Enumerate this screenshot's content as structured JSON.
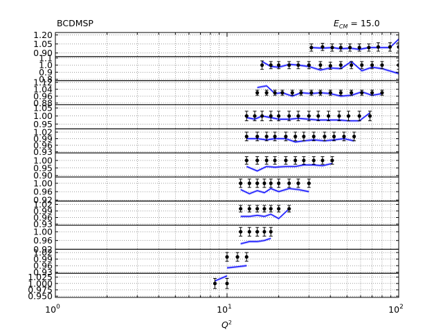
{
  "figure": {
    "left_title": "BCDMSP",
    "right_title_prefix": "E",
    "right_title_sub": "CM",
    "right_title_value": " = 15.0",
    "xlabel_main": "Q",
    "xlabel_sup": "2",
    "colors": {
      "model": "#0000ff",
      "band": "#8080ff",
      "points": "#000000"
    }
  },
  "chart_data": {
    "type": "scatter",
    "x_scale": "log",
    "xlim": [
      1,
      100
    ],
    "x_ticks": [
      {
        "value": 1,
        "base": "10",
        "exp": "0"
      },
      {
        "value": 10,
        "base": "10",
        "exp": "1"
      },
      {
        "value": 100,
        "base": "10",
        "exp": "2"
      }
    ],
    "grid": true,
    "panels": [
      {
        "ylim": [
          0.84,
          1.24
        ],
        "yticks": [
          "1.20",
          "1.05",
          "0.90"
        ],
        "ytick_values": [
          1.2,
          1.05,
          0.9
        ],
        "points": [
          [
            31,
            0.99,
            0.06
          ],
          [
            36,
            1.0,
            0.06
          ],
          [
            41,
            0.99,
            0.06
          ],
          [
            46,
            0.99,
            0.06
          ],
          [
            52,
            0.99,
            0.06
          ],
          [
            59,
            0.99,
            0.06
          ],
          [
            67,
            0.99,
            0.06
          ],
          [
            76,
            1.0,
            0.07
          ],
          [
            89,
            1.0,
            0.07
          ],
          [
            100,
            1.0,
            0.07
          ]
        ],
        "model": [
          [
            31,
            0.99
          ],
          [
            36,
            0.98
          ],
          [
            41,
            0.99
          ],
          [
            46,
            0.97
          ],
          [
            52,
            0.98
          ],
          [
            59,
            0.96
          ],
          [
            67,
            0.99
          ],
          [
            76,
            0.99
          ],
          [
            89,
            0.99
          ],
          [
            100,
            1.13
          ]
        ]
      },
      {
        "ylim": [
          0.78,
          1.12
        ],
        "yticks": [
          "1.1",
          "1.0",
          "0.9",
          "0.8"
        ],
        "ytick_values": [
          1.1,
          1.0,
          0.9,
          0.8
        ],
        "points": [
          [
            16,
            1.0,
            0.06
          ],
          [
            18,
            1.0,
            0.05
          ],
          [
            20,
            1.0,
            0.05
          ],
          [
            23,
            1.0,
            0.05
          ],
          [
            26,
            1.0,
            0.05
          ],
          [
            30,
            1.0,
            0.05
          ],
          [
            35,
            1.0,
            0.05
          ],
          [
            40,
            0.99,
            0.05
          ],
          [
            46,
            1.0,
            0.05
          ],
          [
            53,
            1.0,
            0.05
          ],
          [
            61,
            1.0,
            0.05
          ],
          [
            70,
            1.0,
            0.05
          ],
          [
            80,
            1.0,
            0.05
          ],
          [
            100,
            1.0,
            0.06
          ]
        ],
        "model": [
          [
            16,
            1.05
          ],
          [
            18,
            0.98
          ],
          [
            20,
            0.97
          ],
          [
            23,
            1.01
          ],
          [
            26,
            1.0
          ],
          [
            30,
            0.98
          ],
          [
            35,
            0.93
          ],
          [
            40,
            0.96
          ],
          [
            46,
            0.95
          ],
          [
            53,
            1.05
          ],
          [
            61,
            0.92
          ],
          [
            70,
            0.97
          ],
          [
            80,
            0.95
          ],
          [
            100,
            0.88
          ]
        ]
      },
      {
        "ylim": [
          0.86,
          1.14
        ],
        "yticks": [
          "1.12",
          "1.04",
          "0.96",
          "0.88"
        ],
        "ytick_values": [
          1.12,
          1.04,
          0.96,
          0.88
        ],
        "points": [
          [
            15,
            1.0,
            0.03
          ],
          [
            17,
            1.0,
            0.03
          ],
          [
            19,
            1.0,
            0.03
          ],
          [
            21,
            1.0,
            0.03
          ],
          [
            24,
            1.0,
            0.03
          ],
          [
            27,
            1.0,
            0.03
          ],
          [
            31,
            1.0,
            0.03
          ],
          [
            35,
            1.0,
            0.03
          ],
          [
            40,
            1.0,
            0.03
          ],
          [
            46,
            1.0,
            0.03
          ],
          [
            53,
            1.0,
            0.03
          ],
          [
            61,
            1.0,
            0.03
          ],
          [
            70,
            1.0,
            0.03
          ],
          [
            80,
            1.0,
            0.03
          ]
        ],
        "model": [
          [
            15,
            1.06
          ],
          [
            17,
            1.08
          ],
          [
            19,
            0.99
          ],
          [
            21,
            1.0
          ],
          [
            24,
            0.96
          ],
          [
            27,
            1.0
          ],
          [
            31,
            0.99
          ],
          [
            35,
            1.0
          ],
          [
            40,
            0.99
          ],
          [
            46,
            0.96
          ],
          [
            53,
            0.97
          ],
          [
            61,
            1.01
          ],
          [
            70,
            0.97
          ],
          [
            80,
            0.99
          ]
        ]
      },
      {
        "ylim": [
          0.92,
          1.07
        ],
        "yticks": [
          "1.05",
          "1.00",
          "0.95"
        ],
        "ytick_values": [
          1.05,
          1.0,
          0.95
        ],
        "points": [
          [
            13,
            1.0,
            0.03
          ],
          [
            14.5,
            1.0,
            0.03
          ],
          [
            16,
            1.0,
            0.03
          ],
          [
            18,
            1.0,
            0.03
          ],
          [
            20,
            1.0,
            0.03
          ],
          [
            23,
            1.0,
            0.03
          ],
          [
            26,
            1.0,
            0.03
          ],
          [
            30,
            1.0,
            0.03
          ],
          [
            34,
            1.0,
            0.03
          ],
          [
            39,
            1.0,
            0.03
          ],
          [
            45,
            1.0,
            0.03
          ],
          [
            51,
            1.0,
            0.03
          ],
          [
            59,
            1.0,
            0.03
          ],
          [
            68,
            1.0,
            0.03
          ]
        ],
        "model": [
          [
            13,
            0.99
          ],
          [
            14.5,
            0.98
          ],
          [
            16,
            1.0
          ],
          [
            18,
            0.99
          ],
          [
            20,
            0.98
          ],
          [
            23,
            0.98
          ],
          [
            26,
            0.985
          ],
          [
            30,
            0.98
          ],
          [
            34,
            0.975
          ],
          [
            39,
            0.975
          ],
          [
            45,
            0.975
          ],
          [
            51,
            0.97
          ],
          [
            59,
            0.97
          ],
          [
            68,
            1.02
          ]
        ]
      },
      {
        "ylim": [
          0.925,
          1.035
        ],
        "yticks": [
          "1.02",
          "0.99",
          "0.96",
          "0.93"
        ],
        "ytick_values": [
          1.02,
          0.99,
          0.96,
          0.93
        ],
        "points": [
          [
            13,
            1.0,
            0.02
          ],
          [
            15,
            1.0,
            0.02
          ],
          [
            17,
            1.0,
            0.02
          ],
          [
            19,
            1.0,
            0.02
          ],
          [
            22,
            1.0,
            0.02
          ],
          [
            25,
            1.0,
            0.02
          ],
          [
            28,
            1.0,
            0.02
          ],
          [
            32,
            1.0,
            0.02
          ],
          [
            37,
            1.0,
            0.02
          ],
          [
            42,
            1.0,
            0.02
          ],
          [
            48,
            1.0,
            0.02
          ],
          [
            55,
            1.0,
            0.02
          ]
        ],
        "model": [
          [
            13,
            0.99
          ],
          [
            15,
            0.99
          ],
          [
            17,
            0.985
          ],
          [
            19,
            0.99
          ],
          [
            22,
            0.99
          ],
          [
            25,
            0.975
          ],
          [
            28,
            0.98
          ],
          [
            32,
            0.985
          ],
          [
            37,
            0.98
          ],
          [
            42,
            0.985
          ],
          [
            48,
            0.99
          ],
          [
            55,
            0.98
          ]
        ]
      },
      {
        "ylim": [
          0.89,
          1.05
        ],
        "yticks": [
          "1.00",
          "0.95",
          "0.90"
        ],
        "ytick_values": [
          1.0,
          0.95,
          0.9
        ],
        "points": [
          [
            13,
            1.0,
            0.025
          ],
          [
            15,
            1.0,
            0.025
          ],
          [
            17,
            1.0,
            0.025
          ],
          [
            19,
            1.0,
            0.025
          ],
          [
            22,
            1.0,
            0.025
          ],
          [
            25,
            1.0,
            0.025
          ],
          [
            28,
            1.0,
            0.025
          ],
          [
            32,
            1.0,
            0.025
          ],
          [
            36,
            1.0,
            0.025
          ],
          [
            41,
            1.0,
            0.025
          ]
        ],
        "model": [
          [
            13,
            0.96
          ],
          [
            15,
            0.93
          ],
          [
            17,
            0.96
          ],
          [
            19,
            0.955
          ],
          [
            22,
            0.96
          ],
          [
            25,
            0.96
          ],
          [
            28,
            0.97
          ],
          [
            32,
            0.97
          ],
          [
            36,
            0.965
          ],
          [
            41,
            0.98
          ]
        ]
      },
      {
        "ylim": [
          0.915,
          1.03
        ],
        "yticks": [
          "1.00",
          "0.96",
          "0.92"
        ],
        "ytick_values": [
          1.0,
          0.96,
          0.92
        ],
        "points": [
          [
            12,
            1.0,
            0.02
          ],
          [
            13.5,
            1.0,
            0.02
          ],
          [
            15,
            1.0,
            0.02
          ],
          [
            16.5,
            1.0,
            0.02
          ],
          [
            18,
            1.0,
            0.02
          ],
          [
            20,
            1.0,
            0.02
          ],
          [
            23,
            1.0,
            0.02
          ],
          [
            26,
            1.0,
            0.02
          ],
          [
            30,
            1.0,
            0.02
          ]
        ],
        "model": [
          [
            12,
            0.97
          ],
          [
            13.5,
            0.95
          ],
          [
            15,
            0.965
          ],
          [
            16.5,
            0.955
          ],
          [
            18,
            0.975
          ],
          [
            20,
            0.96
          ],
          [
            23,
            0.975
          ],
          [
            26,
            0.97
          ],
          [
            30,
            0.96
          ]
        ]
      },
      {
        "ylim": [
          0.925,
          1.035
        ],
        "yticks": [
          "1.02",
          "0.99",
          "0.96",
          "0.93"
        ],
        "ytick_values": [
          1.02,
          0.99,
          0.96,
          0.93
        ],
        "points": [
          [
            12,
            1.0,
            0.015
          ],
          [
            13.5,
            1.0,
            0.015
          ],
          [
            15,
            1.0,
            0.015
          ],
          [
            16.5,
            1.0,
            0.015
          ],
          [
            18,
            1.0,
            0.015
          ],
          [
            20,
            1.0,
            0.015
          ],
          [
            23,
            1.0,
            0.015
          ]
        ],
        "model": [
          [
            12,
            0.965
          ],
          [
            13.5,
            0.965
          ],
          [
            15,
            0.97
          ],
          [
            16.5,
            0.965
          ],
          [
            18,
            0.975
          ],
          [
            20,
            0.955
          ],
          [
            23,
            1.0
          ]
        ]
      },
      {
        "ylim": [
          0.92,
          1.03
        ],
        "yticks": [
          "1.00",
          "0.96",
          "0.92"
        ],
        "ytick_values": [
          1.0,
          0.96,
          0.92
        ],
        "points": [
          [
            12,
            1.0,
            0.02
          ],
          [
            13.5,
            1.0,
            0.02
          ],
          [
            15,
            1.0,
            0.02
          ],
          [
            16.5,
            1.0,
            0.02
          ],
          [
            18,
            1.0,
            0.02
          ]
        ],
        "model": [
          [
            12,
            0.945
          ],
          [
            13.5,
            0.955
          ],
          [
            15,
            0.955
          ],
          [
            16.5,
            0.96
          ],
          [
            18,
            0.97
          ]
        ]
      },
      {
        "ylim": [
          0.925,
          1.035
        ],
        "yticks": [
          "1.02",
          "0.99",
          "0.96",
          "0.93"
        ],
        "ytick_values": [
          1.02,
          0.99,
          0.96,
          0.93
        ],
        "points": [
          [
            10,
            1.0,
            0.02
          ],
          [
            11.5,
            1.0,
            0.02
          ],
          [
            13,
            1.0,
            0.02
          ]
        ],
        "model": [
          [
            10,
            0.95
          ],
          [
            11.5,
            0.955
          ],
          [
            13,
            0.96
          ]
        ]
      },
      {
        "ylim": [
          0.945,
          1.04
        ],
        "yticks": [
          "1.025",
          "1.000",
          "0.975",
          "0.950"
        ],
        "ytick_values": [
          1.025,
          1.0,
          0.975,
          0.95
        ],
        "points": [
          [
            8.5,
            1.0,
            0.02
          ],
          [
            10,
            1.0,
            0.02
          ]
        ],
        "model": [
          [
            8.5,
            1.01
          ],
          [
            10,
            1.03
          ]
        ]
      }
    ]
  }
}
